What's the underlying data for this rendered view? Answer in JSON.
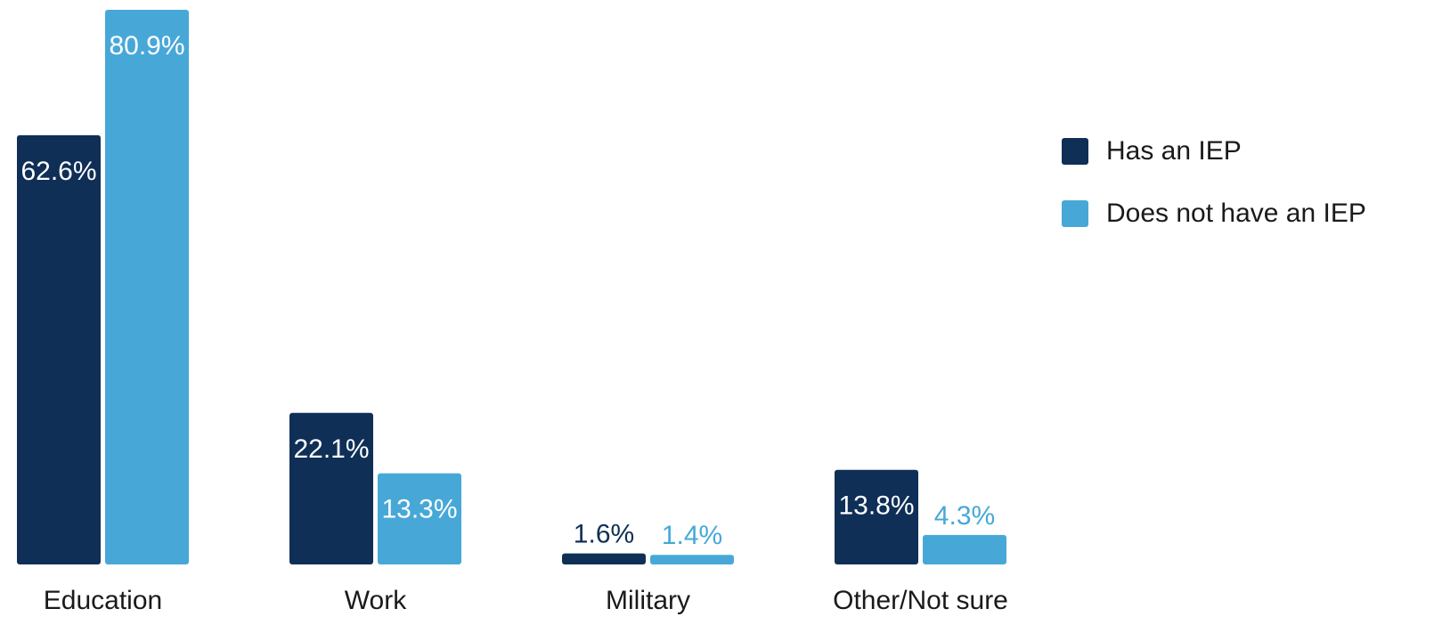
{
  "chart_data": {
    "type": "bar",
    "categories": [
      "Education",
      "Work",
      "Military",
      "Other/Not sure"
    ],
    "series": [
      {
        "name": "Has an IEP",
        "values": [
          62.6,
          22.1,
          1.6,
          13.8
        ],
        "labels": [
          "62.6%",
          "22.1%",
          "1.6%",
          "13.8%"
        ],
        "color": "#0f2f57"
      },
      {
        "name": "Does not have an IEP",
        "values": [
          80.9,
          13.3,
          1.4,
          4.3
        ],
        "labels": [
          "80.9%",
          "13.3%",
          "1.4%",
          "4.3%"
        ],
        "color": "#47a8d8"
      }
    ],
    "ylim": [
      0,
      80.9
    ],
    "grid": false,
    "legend_position": "right"
  }
}
